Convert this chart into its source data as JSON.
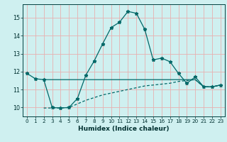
{
  "title": "",
  "xlabel": "Humidex (Indice chaleur)",
  "background_color": "#cff0f0",
  "grid_color": "#e8b0b0",
  "line_color": "#006868",
  "x_min": -0.5,
  "x_max": 23.5,
  "y_min": 9.5,
  "y_max": 15.75,
  "yticks": [
    10,
    11,
    12,
    13,
    14,
    15
  ],
  "xticks": [
    0,
    1,
    2,
    3,
    4,
    5,
    6,
    7,
    8,
    9,
    10,
    11,
    12,
    13,
    14,
    15,
    16,
    17,
    18,
    19,
    20,
    21,
    22,
    23
  ],
  "curve1_x": [
    0,
    1,
    2,
    3,
    4,
    5,
    6,
    7,
    8,
    9,
    10,
    11,
    12,
    13,
    14,
    15,
    16,
    17,
    18,
    19,
    20,
    21,
    22,
    23
  ],
  "curve1_y": [
    11.9,
    11.6,
    11.55,
    10.0,
    9.97,
    10.0,
    10.5,
    11.8,
    12.6,
    13.55,
    14.45,
    14.75,
    15.35,
    15.25,
    14.35,
    12.65,
    12.75,
    12.55,
    11.9,
    11.35,
    11.7,
    11.15,
    11.15,
    11.25
  ],
  "curve2_x": [
    2,
    3,
    4,
    5,
    6,
    7,
    8,
    9,
    10,
    11,
    12,
    13,
    14,
    15,
    16,
    17,
    18,
    19,
    20,
    21,
    22,
    23
  ],
  "curve2_y": [
    11.55,
    11.55,
    11.55,
    11.55,
    11.55,
    11.55,
    11.55,
    11.55,
    11.55,
    11.55,
    11.55,
    11.55,
    11.55,
    11.55,
    11.55,
    11.55,
    11.55,
    11.55,
    11.55,
    11.15,
    11.15,
    11.25
  ],
  "curve3_x": [
    2,
    3,
    4,
    5,
    6,
    7,
    8,
    9,
    10,
    11,
    12,
    13,
    14,
    15,
    16,
    17,
    18,
    19,
    20,
    21,
    22,
    23
  ],
  "curve3_y": [
    9.97,
    9.97,
    9.97,
    10.0,
    10.2,
    10.4,
    10.55,
    10.7,
    10.8,
    10.9,
    11.0,
    11.1,
    11.2,
    11.25,
    11.3,
    11.35,
    11.45,
    11.5,
    11.55,
    11.15,
    11.15,
    11.25
  ]
}
